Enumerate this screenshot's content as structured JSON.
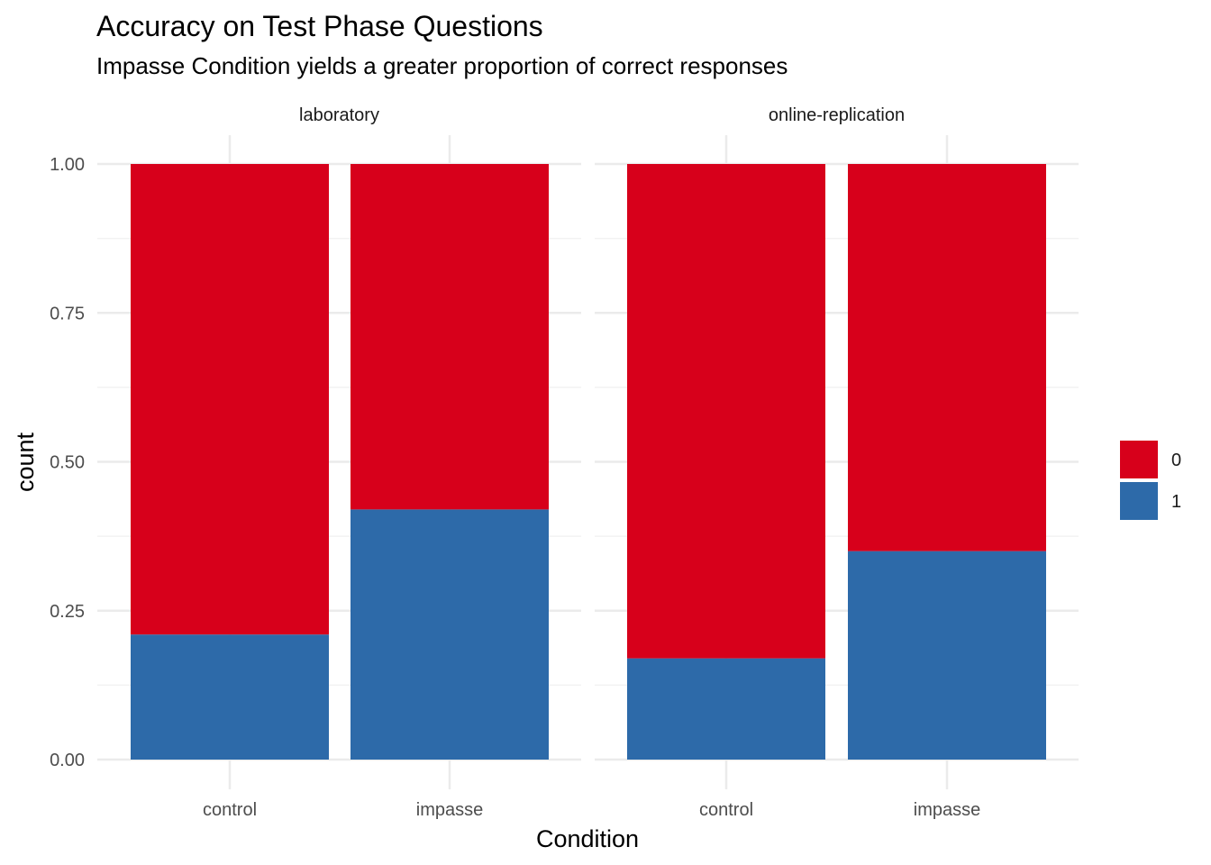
{
  "chart_data": {
    "type": "bar",
    "stacked": true,
    "title": "Accuracy on Test Phase Questions",
    "subtitle": "Impasse Condition yields a greater proportion of correct responses",
    "xlabel": "Condition",
    "ylabel": "count",
    "ylim": [
      0,
      1
    ],
    "yticks": [
      "0.00",
      "0.25",
      "0.50",
      "0.75",
      "1.00"
    ],
    "categories": [
      "control",
      "impasse"
    ],
    "grid": true,
    "legend_position": "right",
    "legend": [
      {
        "label": "0",
        "color": "#D7001B"
      },
      {
        "label": "1",
        "color": "#2D6AA9"
      }
    ],
    "panels": [
      {
        "label": "laboratory",
        "series": [
          {
            "name": "1",
            "values": [
              0.21,
              0.42
            ]
          },
          {
            "name": "0",
            "values": [
              0.79,
              0.58
            ]
          }
        ]
      },
      {
        "label": "online-replication",
        "series": [
          {
            "name": "1",
            "values": [
              0.17,
              0.35
            ]
          },
          {
            "name": "0",
            "values": [
              0.83,
              0.65
            ]
          }
        ]
      }
    ]
  }
}
